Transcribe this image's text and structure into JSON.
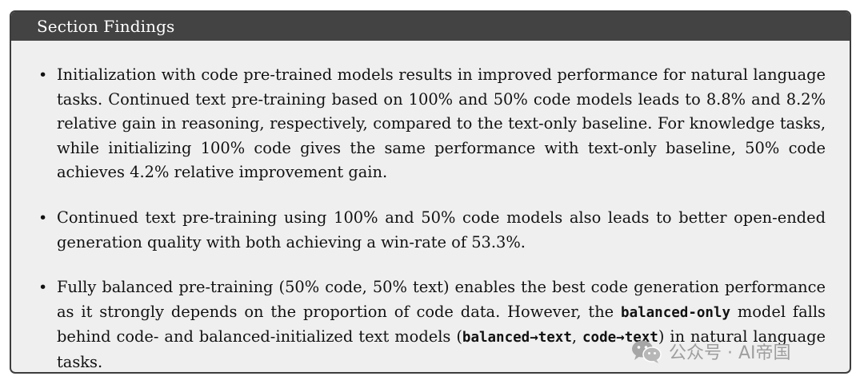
{
  "header": {
    "title": "Section Findings"
  },
  "findings": [
    {
      "segments": [
        "Initialization with code pre-trained models results in improved performance for natural language tasks. Continued text pre-training based on 100% and 50% code models leads to 8.8% and 8.2% relative gain in reasoning, respectively, compared to the text-only baseline. For knowledge tasks, while initializing 100% code gives the same performance with text-only baseline, 50% code achieves 4.2% relative improvement gain."
      ]
    },
    {
      "segments": [
        "Continued text pre-training using 100% and 50% code models also leads to better open-ended generation quality with both achieving a win-rate of 53.3%."
      ]
    },
    {
      "segments": [
        "Fully balanced pre-training (50% code, 50% text) enables the best code generation performance as it strongly depends on the proportion of code data. However, the ",
        "balanced-only",
        " model falls behind code- and balanced-initialized text models (",
        "balanced→text",
        ", ",
        "code→text",
        ") in natural language tasks."
      ]
    }
  ],
  "watermark": {
    "text": "公众号 · AI帝国",
    "icon": "wechat-icon"
  }
}
